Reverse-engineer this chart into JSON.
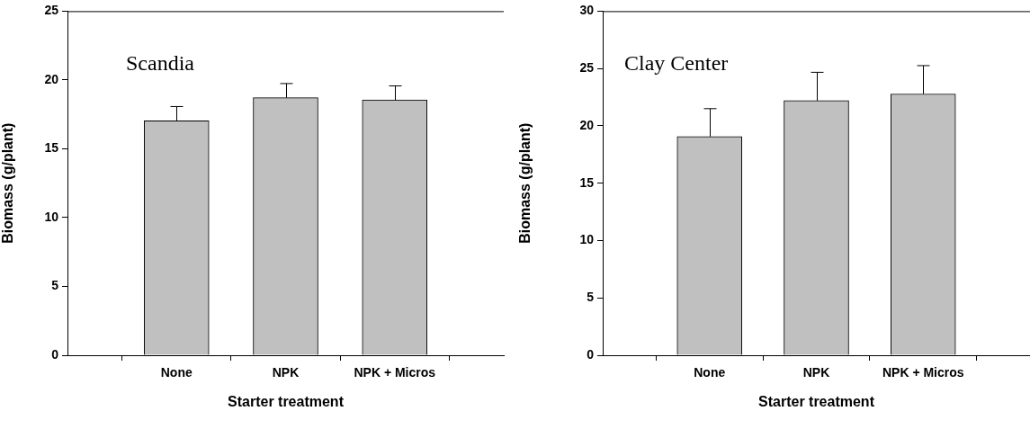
{
  "chart_data": [
    {
      "type": "bar",
      "title": "Scandia",
      "xlabel": "Starter treatment",
      "ylabel": "Biomass (g/plant)",
      "categories": [
        "None",
        "NPK",
        "NPK + Micros"
      ],
      "series": [
        {
          "color": "#c0c0c0",
          "values": [
            17.04,
            18.71,
            18.55
          ],
          "errors": [
            [
              17.04,
              18.07
            ],
            [
              18.71,
              19.74
            ],
            [
              18.55,
              19.57
            ]
          ]
        }
      ],
      "ylim": [
        0,
        25
      ],
      "yticks": [
        0,
        5,
        10,
        15,
        20,
        25
      ]
    },
    {
      "type": "bar",
      "title": "Clay Center",
      "xlabel": "Starter treatment",
      "ylabel": "Biomass (g/plant)",
      "categories": [
        "None",
        "NPK",
        "NPK + Micros"
      ],
      "series": [
        {
          "color": "#c0c0c0",
          "values": [
            19.07,
            22.2,
            22.78
          ],
          "errors": [
            [
              19.07,
              21.5
            ],
            [
              22.2,
              24.67
            ],
            [
              22.78,
              25.25
            ]
          ]
        }
      ],
      "ylim": [
        0,
        30
      ],
      "yticks": [
        0,
        5,
        10,
        15,
        20,
        25,
        30
      ]
    }
  ]
}
